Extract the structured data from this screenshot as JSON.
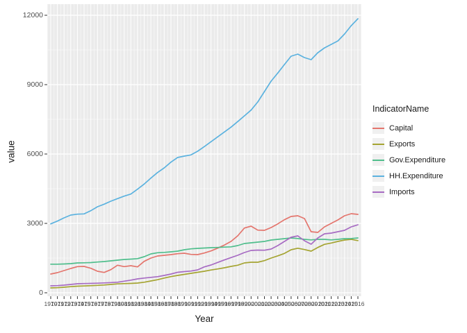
{
  "chart_data": {
    "type": "line",
    "xlabel": "Year",
    "ylabel": "value",
    "legend_title": "IndicatorName",
    "legend_position": "right",
    "grid": true,
    "panel_bg": "#EBEBEB",
    "grid_color": "#FFFFFF",
    "axis_text_color": "#4D4D4D",
    "tick_color": "#333333",
    "xlim": [
      1970,
      2016
    ],
    "ylim": [
      0,
      12480
    ],
    "y_ticks": [
      0,
      3000,
      6000,
      9000,
      12000
    ],
    "y_minor_ticks": [
      1500,
      4500,
      7500,
      10500
    ],
    "x": [
      1970,
      1971,
      1972,
      1973,
      1974,
      1975,
      1976,
      1977,
      1978,
      1979,
      1980,
      1981,
      1982,
      1983,
      1984,
      1985,
      1986,
      1987,
      1988,
      1989,
      1990,
      1991,
      1992,
      1993,
      1994,
      1995,
      1996,
      1997,
      1998,
      1999,
      2000,
      2001,
      2002,
      2003,
      2004,
      2005,
      2006,
      2007,
      2008,
      2009,
      2010,
      2011,
      2012,
      2013,
      2014,
      2015,
      2016
    ],
    "series": [
      {
        "name": "Capital",
        "color": "#E4756D",
        "values": [
          810,
          870,
          960,
          1050,
          1130,
          1140,
          1060,
          930,
          880,
          1000,
          1190,
          1130,
          1170,
          1120,
          1360,
          1500,
          1590,
          1620,
          1650,
          1690,
          1710,
          1660,
          1650,
          1720,
          1810,
          1930,
          2060,
          2220,
          2460,
          2800,
          2880,
          2710,
          2700,
          2820,
          2980,
          3160,
          3300,
          3330,
          3210,
          2640,
          2610,
          2850,
          3000,
          3150,
          3330,
          3420,
          3390
        ]
      },
      {
        "name": "Exports",
        "color": "#A5A432",
        "values": [
          210,
          220,
          240,
          265,
          285,
          295,
          305,
          320,
          335,
          360,
          385,
          395,
          405,
          420,
          455,
          510,
          565,
          635,
          700,
          750,
          795,
          840,
          885,
          930,
          985,
          1030,
          1080,
          1140,
          1190,
          1290,
          1320,
          1320,
          1390,
          1500,
          1595,
          1700,
          1860,
          1925,
          1870,
          1800,
          1960,
          2095,
          2150,
          2220,
          2280,
          2310,
          2255
        ]
      },
      {
        "name": "Gov.Expenditure",
        "color": "#4FBE8C",
        "values": [
          1235,
          1235,
          1245,
          1260,
          1290,
          1295,
          1305,
          1330,
          1350,
          1380,
          1410,
          1440,
          1455,
          1475,
          1560,
          1680,
          1730,
          1745,
          1770,
          1800,
          1860,
          1900,
          1920,
          1935,
          1950,
          1960,
          1975,
          1985,
          2040,
          2130,
          2160,
          2190,
          2220,
          2280,
          2310,
          2340,
          2370,
          2345,
          2310,
          2285,
          2310,
          2310,
          2285,
          2310,
          2340,
          2345,
          2370
        ]
      },
      {
        "name": "HH.Expenditure",
        "color": "#5BB2DF",
        "values": [
          2980,
          3100,
          3240,
          3360,
          3400,
          3410,
          3550,
          3720,
          3830,
          3960,
          4070,
          4180,
          4270,
          4480,
          4700,
          4960,
          5200,
          5400,
          5650,
          5850,
          5910,
          5960,
          6120,
          6320,
          6530,
          6740,
          6950,
          7160,
          7400,
          7650,
          7900,
          8250,
          8700,
          9150,
          9500,
          9870,
          10230,
          10320,
          10170,
          10080,
          10380,
          10590,
          10740,
          10890,
          11190,
          11550,
          11850
        ]
      },
      {
        "name": "Imports",
        "color": "#A76BC3",
        "values": [
          300,
          310,
          330,
          360,
          390,
          400,
          405,
          415,
          425,
          440,
          455,
          500,
          545,
          600,
          635,
          665,
          695,
          750,
          810,
          885,
          915,
          940,
          990,
          1120,
          1200,
          1310,
          1420,
          1520,
          1620,
          1740,
          1830,
          1845,
          1840,
          1890,
          2040,
          2220,
          2400,
          2460,
          2250,
          2100,
          2370,
          2550,
          2580,
          2640,
          2700,
          2850,
          2940
        ]
      }
    ]
  }
}
